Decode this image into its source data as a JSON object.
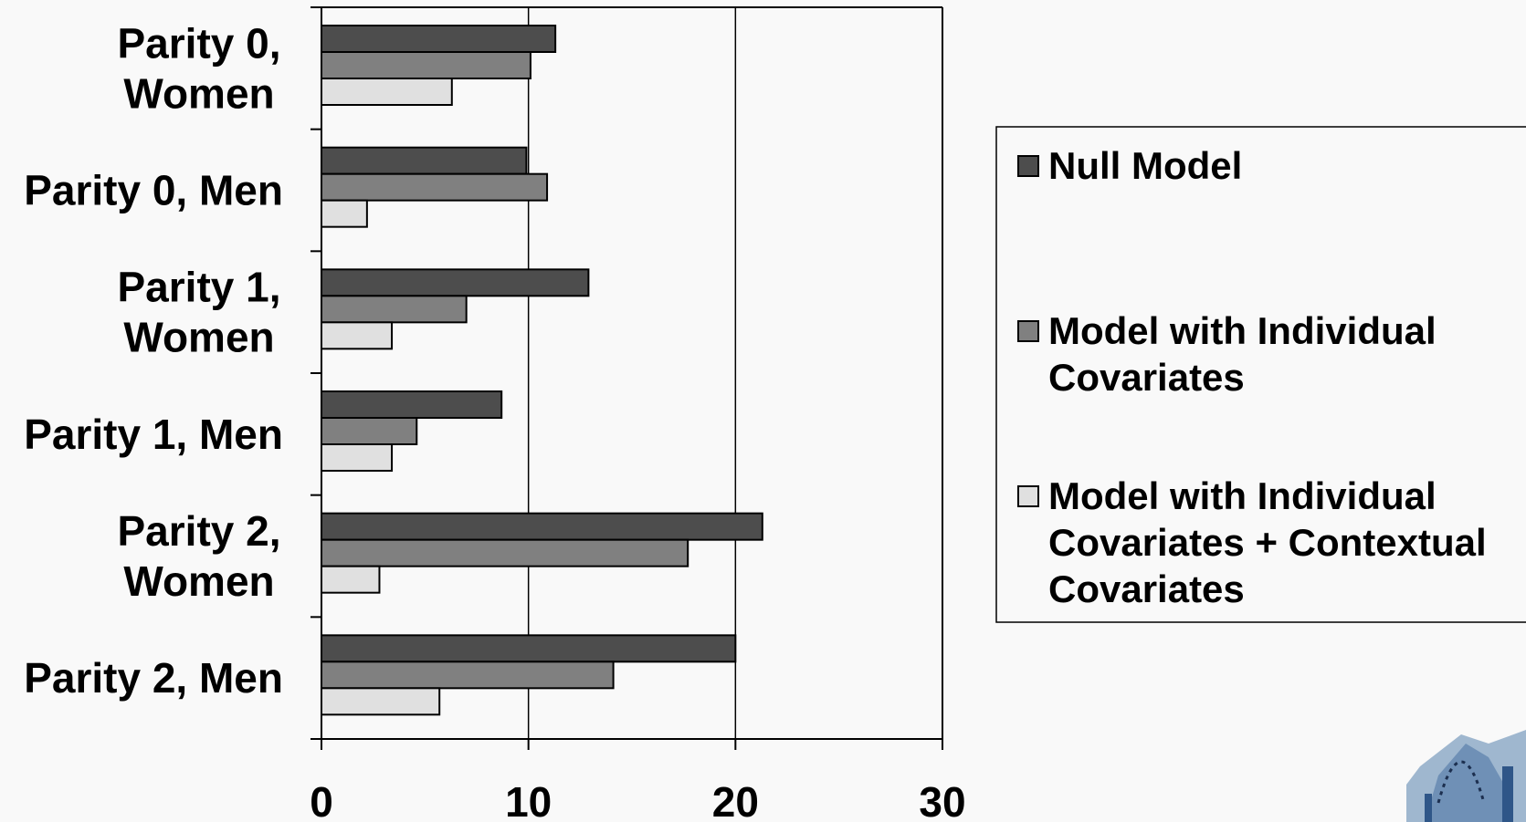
{
  "chart_data": {
    "type": "bar",
    "orientation": "horizontal",
    "categories": [
      [
        "Parity 0,",
        "Women"
      ],
      [
        "Parity 0, Men"
      ],
      [
        "Parity 1,",
        "Women"
      ],
      [
        "Parity 1, Men"
      ],
      [
        "Parity 2,",
        "Women"
      ],
      [
        "Parity 2, Men"
      ]
    ],
    "series": [
      {
        "name": [
          "Null Model"
        ],
        "color": "#4d4d4d",
        "values": [
          11.3,
          9.9,
          12.9,
          8.7,
          21.3,
          20.0
        ]
      },
      {
        "name": [
          "Model with Individual",
          "Covariates"
        ],
        "color": "#808080",
        "values": [
          10.1,
          10.9,
          7.0,
          4.6,
          17.7,
          14.1
        ]
      },
      {
        "name": [
          "Model with Individual",
          "Covariates + Contextual",
          "Covariates"
        ],
        "color": "#e0e0e0",
        "values": [
          6.3,
          2.2,
          3.4,
          3.4,
          2.8,
          5.7
        ]
      }
    ],
    "xlim": [
      0,
      30
    ],
    "xticks": [
      "0",
      "10",
      "20",
      "30"
    ],
    "grid": true,
    "legend_position": "right"
  },
  "logo": {
    "icon": "building-dome-logo"
  }
}
